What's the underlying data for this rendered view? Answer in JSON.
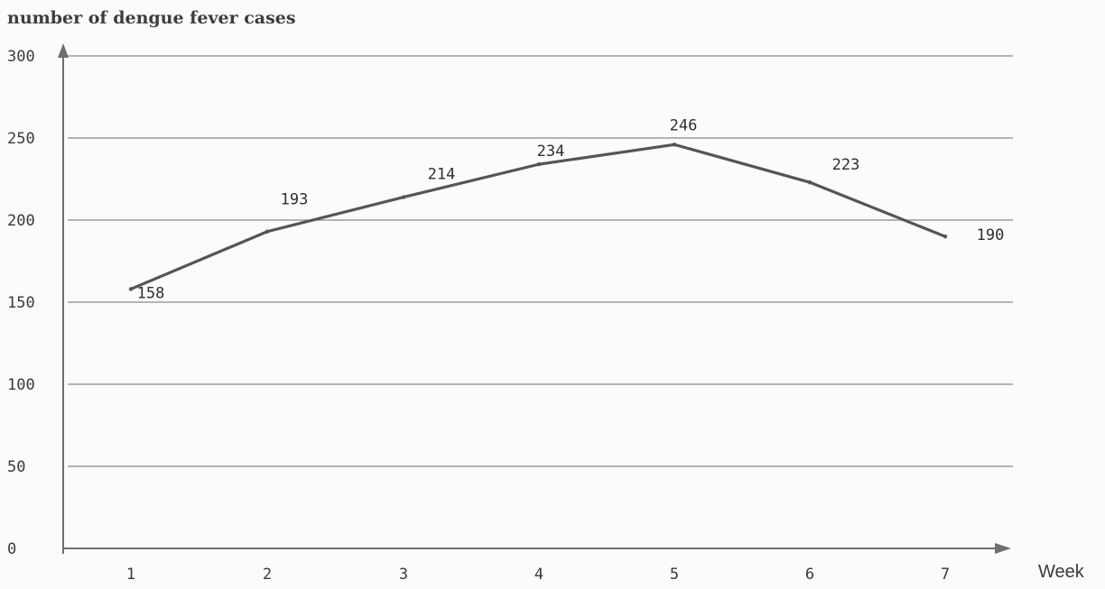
{
  "chart_data": {
    "type": "line",
    "ylabel": "number of  dengue fever cases",
    "xlabel": "Week",
    "categories": [
      "1",
      "2",
      "3",
      "4",
      "5",
      "6",
      "7"
    ],
    "series": [
      {
        "values": [
          158,
          193,
          214,
          234,
          246,
          223,
          190
        ]
      }
    ],
    "data_labels": [
      "158",
      "193",
      "214",
      "234",
      "246",
      "223",
      "190"
    ],
    "yticks": [
      "0",
      "50",
      "100",
      "150",
      "200",
      "250",
      "300"
    ],
    "ylim": [
      0,
      300
    ],
    "grid": true,
    "line_color": "#555555"
  }
}
